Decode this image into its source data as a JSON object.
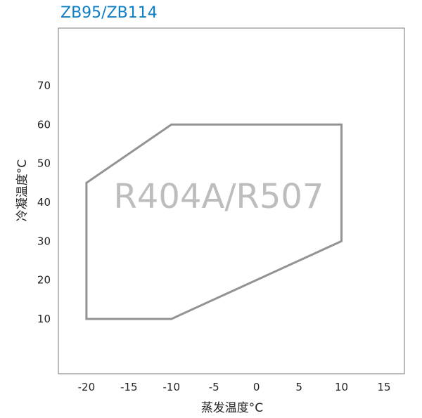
{
  "chart_data": {
    "type": "line",
    "title": "ZB95/ZB114",
    "xlabel": "蒸发温度°C",
    "ylabel": "冷凝温度°C",
    "annotation": "R404A/R507",
    "xlim": [
      -23.3,
      17.4
    ],
    "ylim": [
      -4.1,
      84.8
    ],
    "xticks": [
      -20,
      -15,
      -10,
      -5,
      0,
      5,
      10,
      15
    ],
    "yticks": [
      10,
      20,
      30,
      40,
      50,
      60,
      70
    ],
    "grid": false,
    "series": [
      {
        "closed": true,
        "color": "#939393",
        "x": [
          -20,
          -10,
          10,
          10,
          -10,
          -20
        ],
        "y": [
          10,
          10,
          30,
          60,
          60,
          45
        ]
      }
    ]
  },
  "colors": {
    "title": "#0e7fc4",
    "frame": "#777777",
    "envelope": "#939393",
    "annotation": "#bdbdbd"
  }
}
